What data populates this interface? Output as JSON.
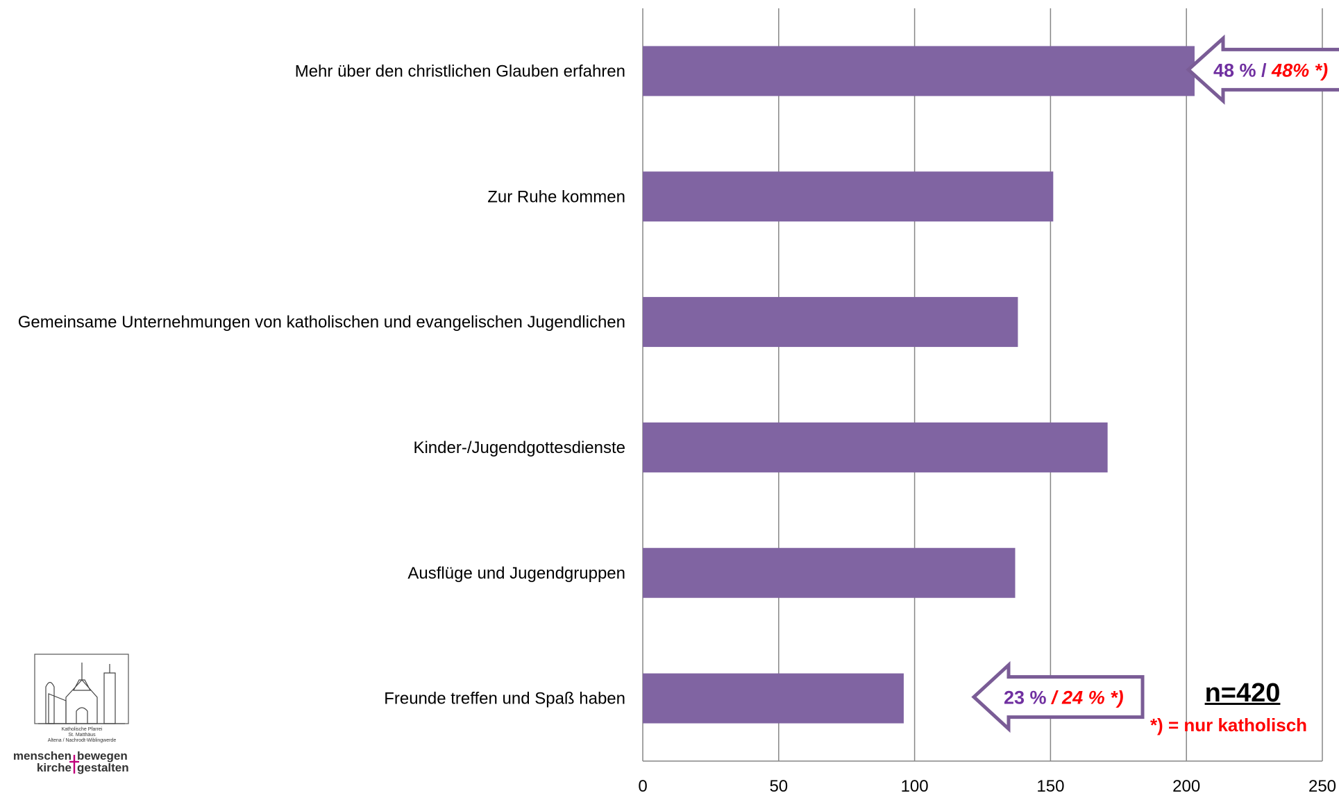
{
  "chart_data": {
    "type": "bar",
    "orientation": "horizontal",
    "categories": [
      "Mehr über den christlichen Glauben erfahren",
      "Zur Ruhe kommen",
      "Gemeinsame Unternehmungen von katholischen und evangelischen Jugendlichen",
      "Kinder-/Jugendgottesdienste",
      "Ausflüge und Jugendgruppen",
      "Freunde treffen und Spaß haben"
    ],
    "values": [
      203,
      151,
      138,
      171,
      137,
      96
    ],
    "xlim": [
      0,
      250
    ],
    "xticks": [
      "0",
      "50",
      "100",
      "150",
      "200",
      "250"
    ],
    "grid": true,
    "bar_color": "#8064A2",
    "annotations": [
      {
        "category_index": 0,
        "text_main": "48 % / ",
        "text_catholic": "48% *)"
      },
      {
        "category_index": 5,
        "text_main": "23 % ",
        "text_catholic": "/ 24 % *)"
      }
    ],
    "sample_size": "n=420",
    "footnote": "*) = nur katholisch"
  },
  "logo": {
    "line1": "Katholische Pfarrei",
    "line2": "St. Matthäus",
    "line3": "Altena / Nachrodt-Wiblingwerde",
    "slogan_left_top": "menschen",
    "slogan_right_top": "bewegen",
    "slogan_left_bottom": "kirche",
    "slogan_right_bottom": "gestalten"
  },
  "colors": {
    "annotation_purple": "#7030A0",
    "annotation_red": "#ff0000",
    "grid": "#868686"
  }
}
